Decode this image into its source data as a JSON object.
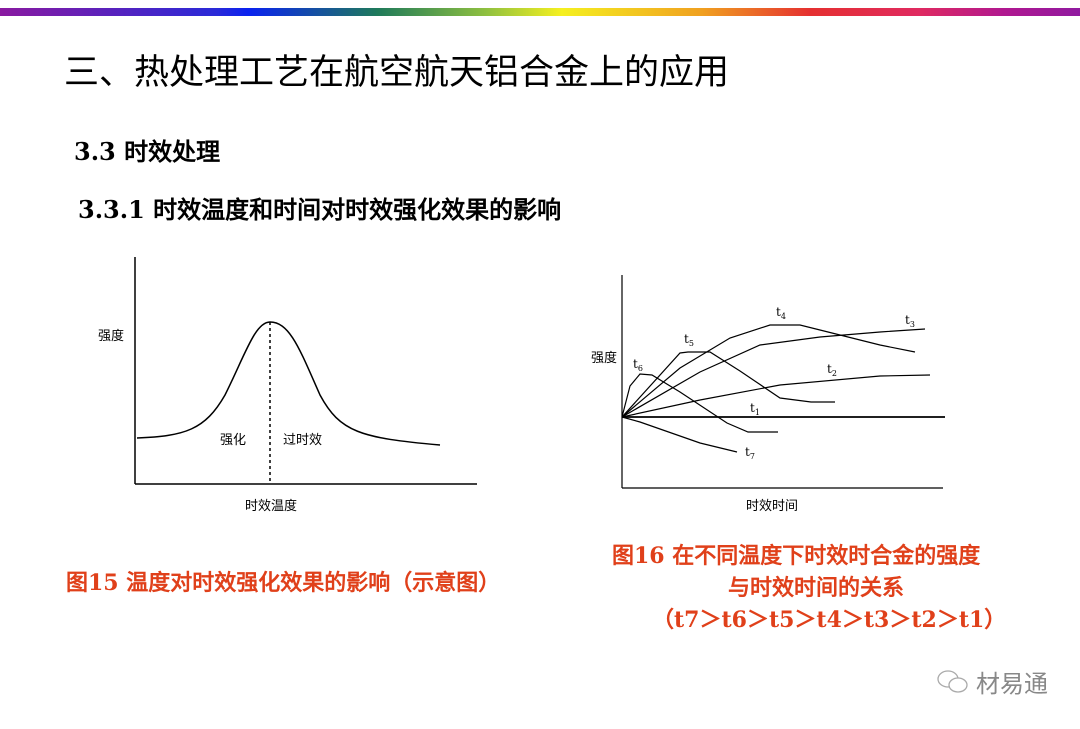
{
  "slide": {
    "title": "三、热处理工艺在航空航天铝合金上的应用",
    "section": "3.3 时效处理",
    "subsection": "3.3.1 时效温度和时间对时效强化效果的影响"
  },
  "figure15": {
    "ylabel": "强度",
    "xlabel": "时效温度",
    "region_left": "强化",
    "region_right": "过时效",
    "caption": "图15  温度对时效强化效果的影响（示意图）"
  },
  "figure16": {
    "ylabel": "强度",
    "xlabel": "时效时间",
    "curves": [
      "t1",
      "t2",
      "t3",
      "t4",
      "t5",
      "t6",
      "t7"
    ],
    "caption_line1": "图16  在不同温度下时效时合金的强度",
    "caption_line2": "与时效时间的关系",
    "caption_line3": "（t7＞t6＞t5＞t4＞t3＞t2＞t1）"
  },
  "watermark": {
    "icon": "wechat-icon",
    "text": "材易通"
  },
  "colors": {
    "caption": "#e0401a"
  }
}
